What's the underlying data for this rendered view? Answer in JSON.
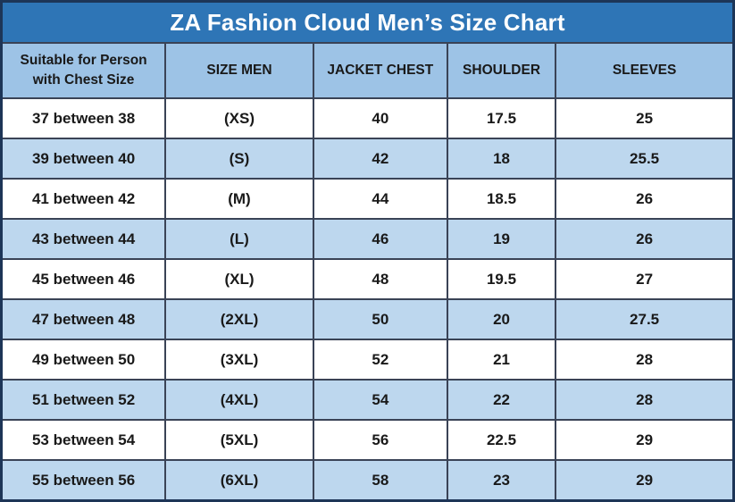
{
  "title": "ZA Fashion Cloud Men’s Size Chart",
  "colors": {
    "title_bg": "#2e75b6",
    "title_fg": "#ffffff",
    "header_bg": "#9dc3e6",
    "row_alt_bg": "#bdd7ee",
    "row_bg": "#ffffff",
    "border": "#3a4356",
    "frame": "#1d3557"
  },
  "table": {
    "columns": [
      "Suitable for Person with Chest Size",
      "SIZE MEN",
      "JACKET CHEST",
      "SHOULDER",
      "SLEEVES"
    ],
    "rows": [
      [
        "37 between 38",
        "(XS)",
        "40",
        "17.5",
        "25"
      ],
      [
        "39 between 40",
        "(S)",
        "42",
        "18",
        "25.5"
      ],
      [
        "41 between 42",
        "(M)",
        "44",
        "18.5",
        "26"
      ],
      [
        "43 between 44",
        "(L)",
        "46",
        "19",
        "26"
      ],
      [
        "45 between 46",
        "(XL)",
        "48",
        "19.5",
        "27"
      ],
      [
        "47 between 48",
        "(2XL)",
        "50",
        "20",
        "27.5"
      ],
      [
        "49 between 50",
        "(3XL)",
        "52",
        "21",
        "28"
      ],
      [
        "51 between 52",
        "(4XL)",
        "54",
        "22",
        "28"
      ],
      [
        "53 between 54",
        "(5XL)",
        "56",
        "22.5",
        "29"
      ],
      [
        "55 between 56",
        "(6XL)",
        "58",
        "23",
        "29"
      ]
    ]
  }
}
